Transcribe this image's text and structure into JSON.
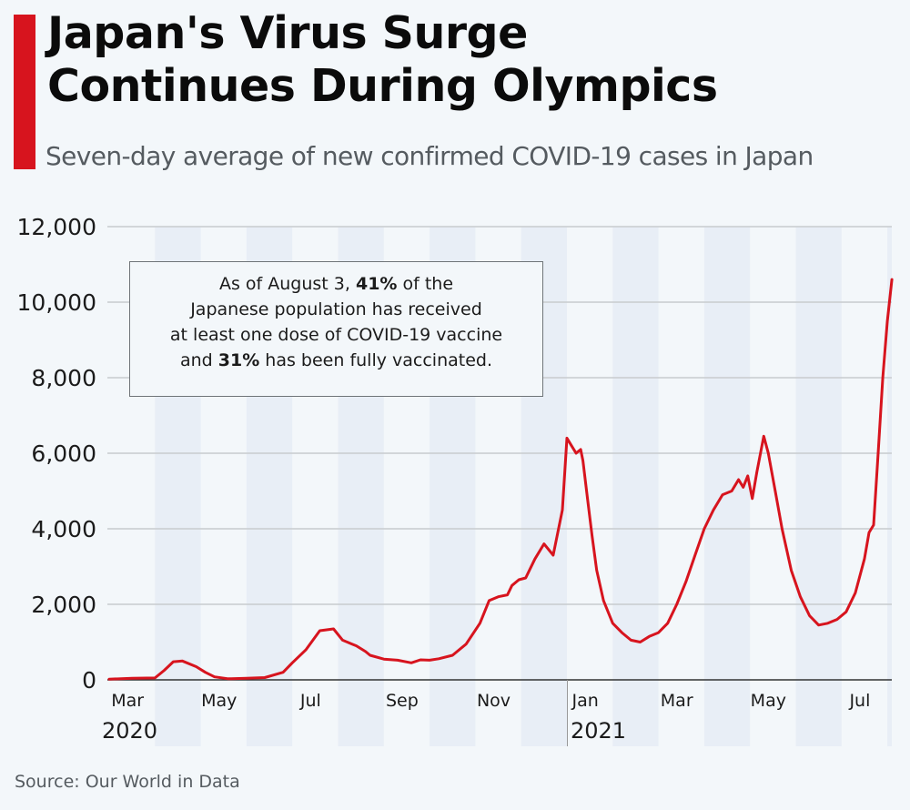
{
  "header": {
    "title_line1": "Japan's Virus Surge",
    "title_line2": "Continues During Olympics",
    "subtitle": "Seven-day average of new confirmed COVID-19 cases in Japan"
  },
  "annotation": {
    "line1_pre": "As of August 3, ",
    "line1_bold": "41%",
    "line1_post": " of the",
    "line2": "Japanese population has received",
    "line3": "at least one dose of COVID-19 vaccine",
    "line4_pre": "and ",
    "line4_bold": "31%",
    "line4_post": " has been fully vaccinated."
  },
  "footer": {
    "source": "Source: Our World in Data"
  },
  "colors": {
    "line": "#d7141e",
    "accent": "#d7141e",
    "band": "#e8eef6",
    "grid": "#c8cbce"
  },
  "chart_data": {
    "type": "line",
    "title": "Japan's Virus Surge Continues During Olympics",
    "subtitle": "Seven-day average of new confirmed COVID-19 cases in Japan",
    "xlabel": "",
    "ylabel": "",
    "ylim": [
      0,
      12000
    ],
    "yticks": [
      0,
      2000,
      4000,
      6000,
      8000,
      10000,
      12000
    ],
    "ytick_labels": [
      "0",
      "2,000",
      "4,000",
      "6,000",
      "8,000",
      "10,000",
      "12,000"
    ],
    "xlim_months": [
      0,
      17.2
    ],
    "xticks": [
      {
        "m": 0.4,
        "label": "Mar"
      },
      {
        "m": 2.4,
        "label": "May"
      },
      {
        "m": 4.4,
        "label": "Jul"
      },
      {
        "m": 6.4,
        "label": "Sep"
      },
      {
        "m": 8.4,
        "label": "Nov"
      },
      {
        "m": 10.4,
        "label": "Jan"
      },
      {
        "m": 12.4,
        "label": "Mar"
      },
      {
        "m": 14.4,
        "label": "May"
      },
      {
        "m": 16.4,
        "label": "Jul"
      }
    ],
    "years": [
      {
        "m": 0,
        "label": "2020"
      },
      {
        "m": 10,
        "label": "2021"
      }
    ],
    "grid": true,
    "legend": "none",
    "series": [
      {
        "name": "7-day average new cases",
        "x_months": [
          0,
          0.5,
          1.0,
          1.2,
          1.4,
          1.6,
          1.9,
          2.1,
          2.3,
          2.6,
          3.0,
          3.4,
          3.8,
          4.0,
          4.3,
          4.6,
          4.9,
          5.1,
          5.3,
          5.4,
          5.6,
          5.7,
          6.0,
          6.3,
          6.6,
          6.8,
          7.0,
          7.2,
          7.5,
          7.8,
          8.1,
          8.3,
          8.5,
          8.7,
          8.8,
          8.95,
          9.1,
          9.3,
          9.5,
          9.7,
          9.9,
          10.0,
          10.1,
          10.2,
          10.3,
          10.35,
          10.45,
          10.55,
          10.65,
          10.8,
          11.0,
          11.2,
          11.4,
          11.6,
          11.8,
          12.0,
          12.2,
          12.4,
          12.6,
          12.8,
          13.0,
          13.2,
          13.4,
          13.6,
          13.75,
          13.85,
          13.95,
          14.05,
          14.15,
          14.3,
          14.4,
          14.55,
          14.7,
          14.9,
          15.1,
          15.3,
          15.5,
          15.7,
          15.9,
          16.1,
          16.3,
          16.5,
          16.6,
          16.7,
          16.8,
          16.9,
          17.0,
          17.1
        ],
        "values": [
          20,
          40,
          50,
          250,
          480,
          500,
          350,
          200,
          80,
          30,
          40,
          60,
          200,
          450,
          800,
          1300,
          1350,
          1050,
          950,
          900,
          750,
          650,
          550,
          520,
          450,
          530,
          520,
          560,
          650,
          950,
          1500,
          2100,
          2200,
          2250,
          2500,
          2650,
          2700,
          3200,
          3600,
          3300,
          4500,
          6400,
          6200,
          6000,
          6100,
          5800,
          4800,
          3800,
          2900,
          2100,
          1500,
          1250,
          1050,
          1000,
          1150,
          1250,
          1500,
          2000,
          2600,
          3300,
          4000,
          4500,
          4900,
          5000,
          5300,
          5100,
          5400,
          4800,
          5500,
          6450,
          6000,
          5000,
          4000,
          2900,
          2200,
          1700,
          1450,
          1500,
          1600,
          1800,
          2300,
          3200,
          3900,
          4100,
          6000,
          8000,
          9500,
          10600
        ]
      }
    ]
  }
}
